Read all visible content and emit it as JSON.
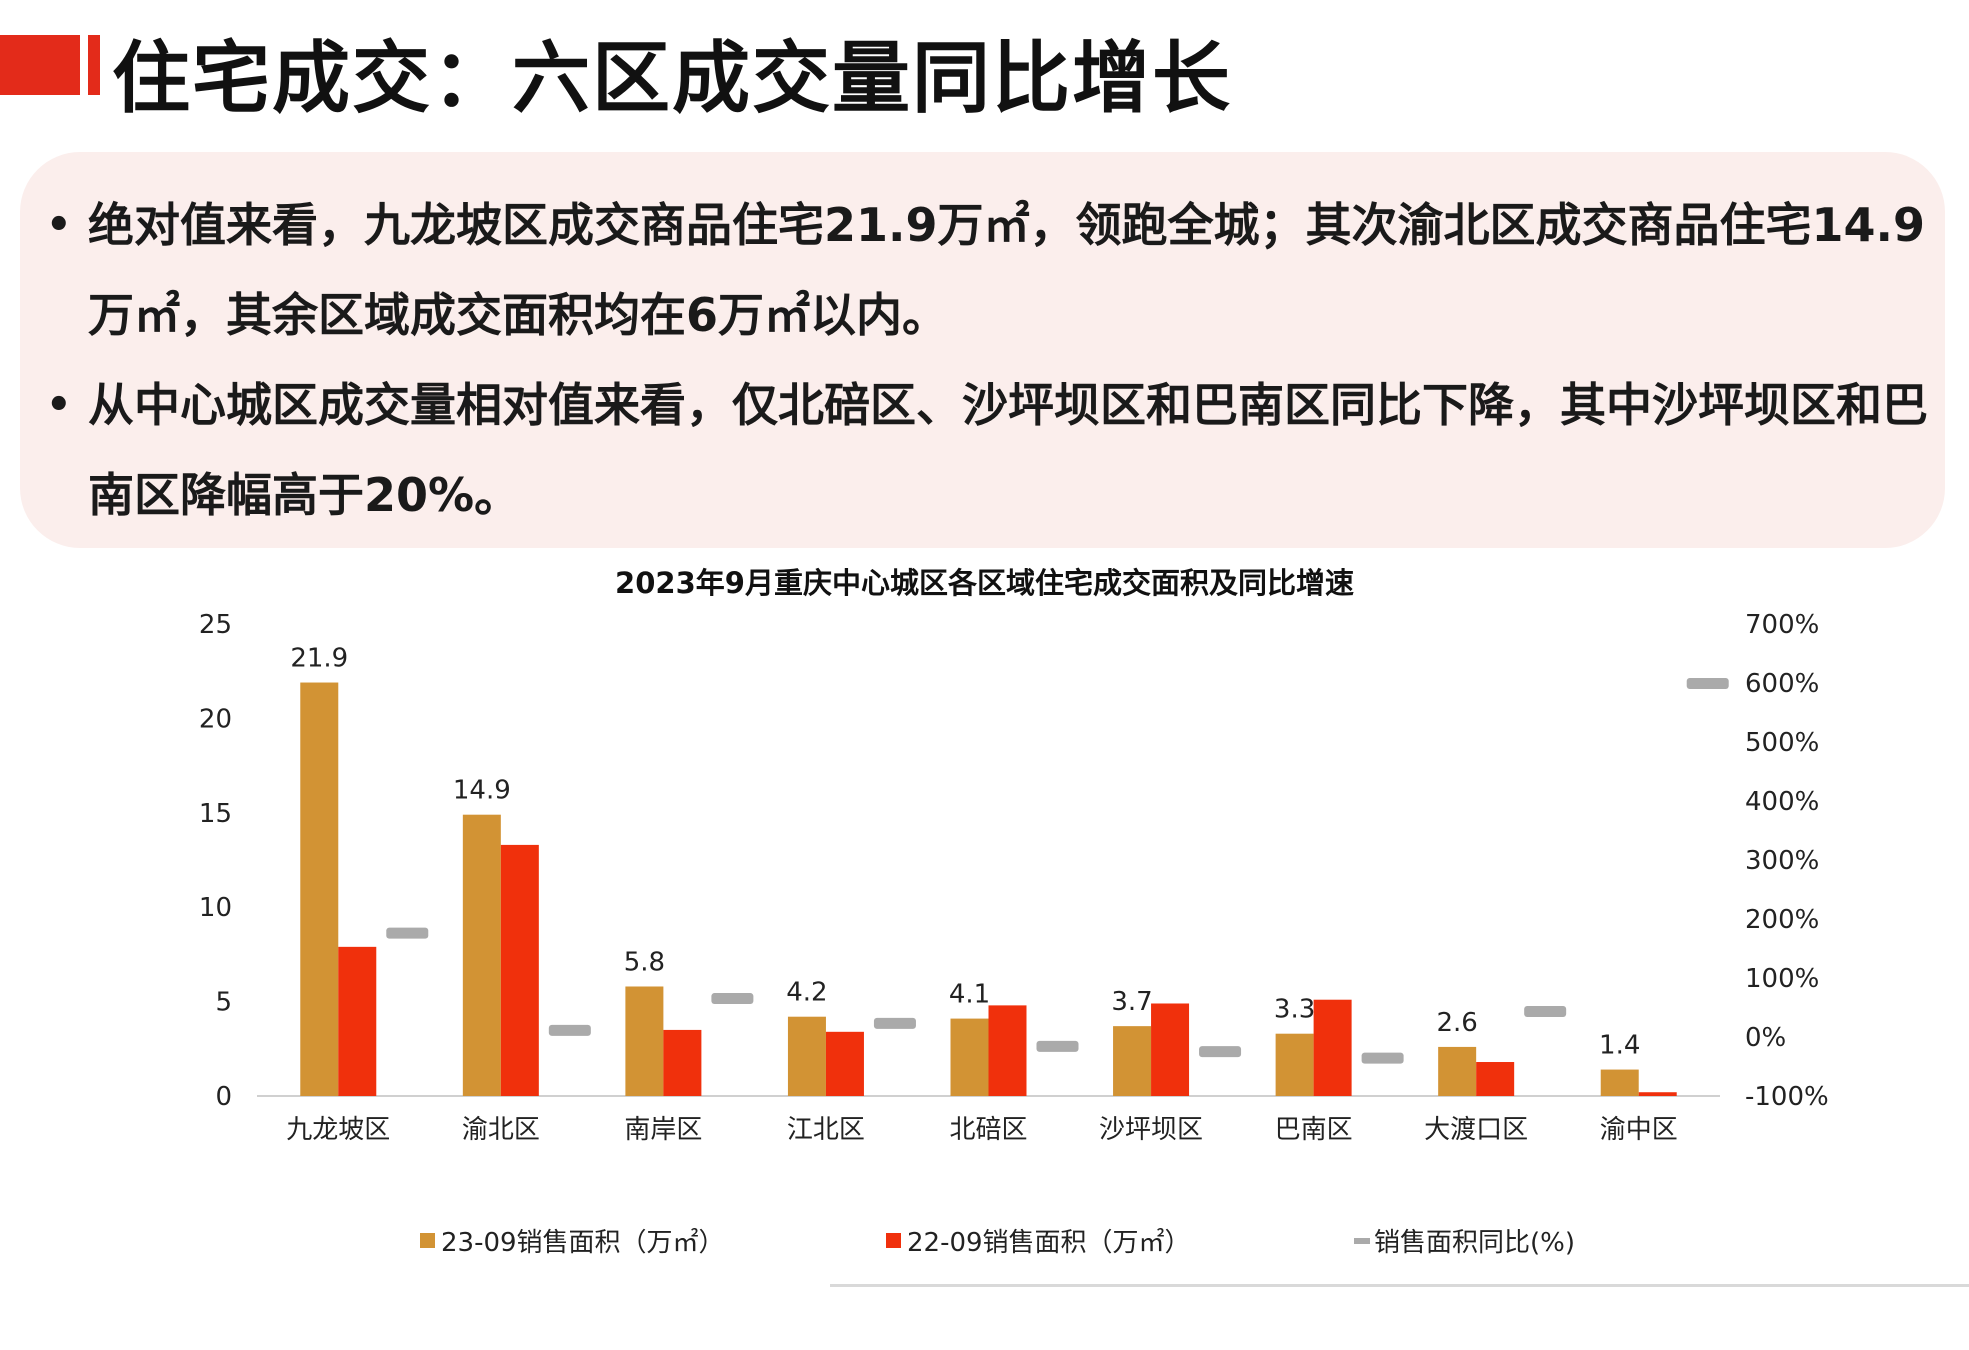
{
  "header": {
    "title": "住宅成交：六区成交量同比增长",
    "accent_color": "#e32b1a"
  },
  "summary": {
    "bullets": [
      "绝对值来看，九龙坡区成交商品住宅21.9万㎡，领跑全城；其次渝北区成交商品住宅14.9万㎡，其余区域成交面积均在6万㎡以内。",
      "从中心城区成交量相对值来看，仅北碚区、沙坪坝区和巴南区同比下降，其中沙坪坝区和巴南区降幅高于20%。"
    ]
  },
  "chart_data": {
    "type": "bar",
    "title": "2023年9月重庆中心城区各区域住宅成交面积及同比增速",
    "categories": [
      "九龙坡区",
      "渝北区",
      "南岸区",
      "江北区",
      "北碚区",
      "沙坪坝区",
      "巴南区",
      "大渡口区",
      "渝中区"
    ],
    "series": [
      {
        "name": "23-09销售面积（万㎡）",
        "axis": "left",
        "color": "#d29334",
        "values": [
          21.9,
          14.9,
          5.8,
          4.2,
          4.1,
          3.7,
          3.3,
          2.6,
          1.4
        ],
        "data_labels": [
          "21.9",
          "14.9",
          "5.8",
          "4.2",
          "4.1",
          "3.7",
          "3.3",
          "2.6",
          "1.4"
        ]
      },
      {
        "name": "22-09销售面积（万㎡）",
        "axis": "right_none",
        "color": "#f0300c",
        "values": [
          7.9,
          13.3,
          3.5,
          3.4,
          4.8,
          4.9,
          5.1,
          1.8,
          0.2
        ]
      },
      {
        "name": "销售面积同比(%)",
        "axis": "right",
        "color": "#aaaaaa",
        "marker": "dash",
        "values": [
          177,
          12,
          66,
          24,
          -15,
          -24,
          -35,
          44,
          600
        ]
      }
    ],
    "left_axis": {
      "ylim": [
        0,
        25
      ],
      "ticks": [
        0,
        5,
        10,
        15,
        20,
        25
      ]
    },
    "right_axis": {
      "ylim": [
        -100,
        700
      ],
      "ticks": [
        "-100%",
        "0%",
        "100%",
        "200%",
        "300%",
        "400%",
        "500%",
        "600%",
        "700%"
      ]
    },
    "grid": false,
    "legend": "bottom"
  }
}
